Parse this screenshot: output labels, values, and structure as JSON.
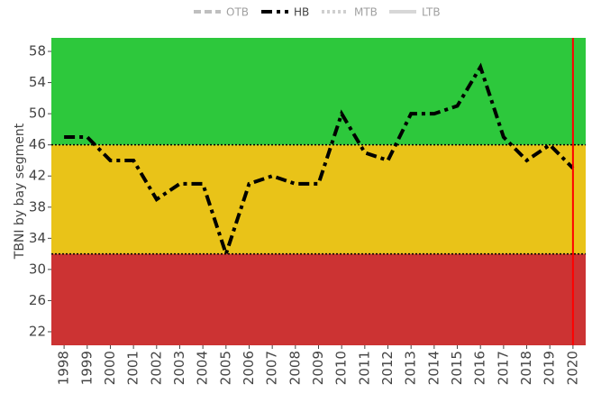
{
  "chart_data": {
    "type": "line",
    "y_label": "TBNI by bay segment",
    "x": [
      1998,
      1999,
      2000,
      2001,
      2002,
      2003,
      2004,
      2005,
      2006,
      2007,
      2008,
      2009,
      2010,
      2011,
      2012,
      2013,
      2014,
      2015,
      2016,
      2017,
      2018,
      2019,
      2020
    ],
    "series": [
      {
        "name": "OTB",
        "color": "#808080",
        "dash": "dash",
        "visible": false
      },
      {
        "name": "HB",
        "color": "#000000",
        "dash": "dashdot",
        "visible": true,
        "values": [
          47,
          47,
          44,
          44,
          39,
          41,
          41,
          32,
          41,
          42,
          41,
          41,
          50,
          45,
          44,
          50,
          50,
          51,
          56,
          47,
          44,
          46,
          43
        ]
      },
      {
        "name": "MTB",
        "color": "#a0a0a0",
        "dash": "dot",
        "visible": false
      },
      {
        "name": "LTB",
        "color": "#b0b0b0",
        "dash": "solid",
        "visible": false
      }
    ],
    "xlim": [
      1997.45,
      2020.55
    ],
    "ylim": [
      20.26,
      59.74
    ],
    "yticks": [
      22,
      26,
      30,
      34,
      38,
      42,
      46,
      50,
      54,
      58
    ],
    "thresholds": [
      32,
      46
    ],
    "band_colors": [
      "#cc3333",
      "#e9c318",
      "#2dc83c"
    ],
    "vline": 2020,
    "vline_color": "#ff0000",
    "legend": "top"
  }
}
